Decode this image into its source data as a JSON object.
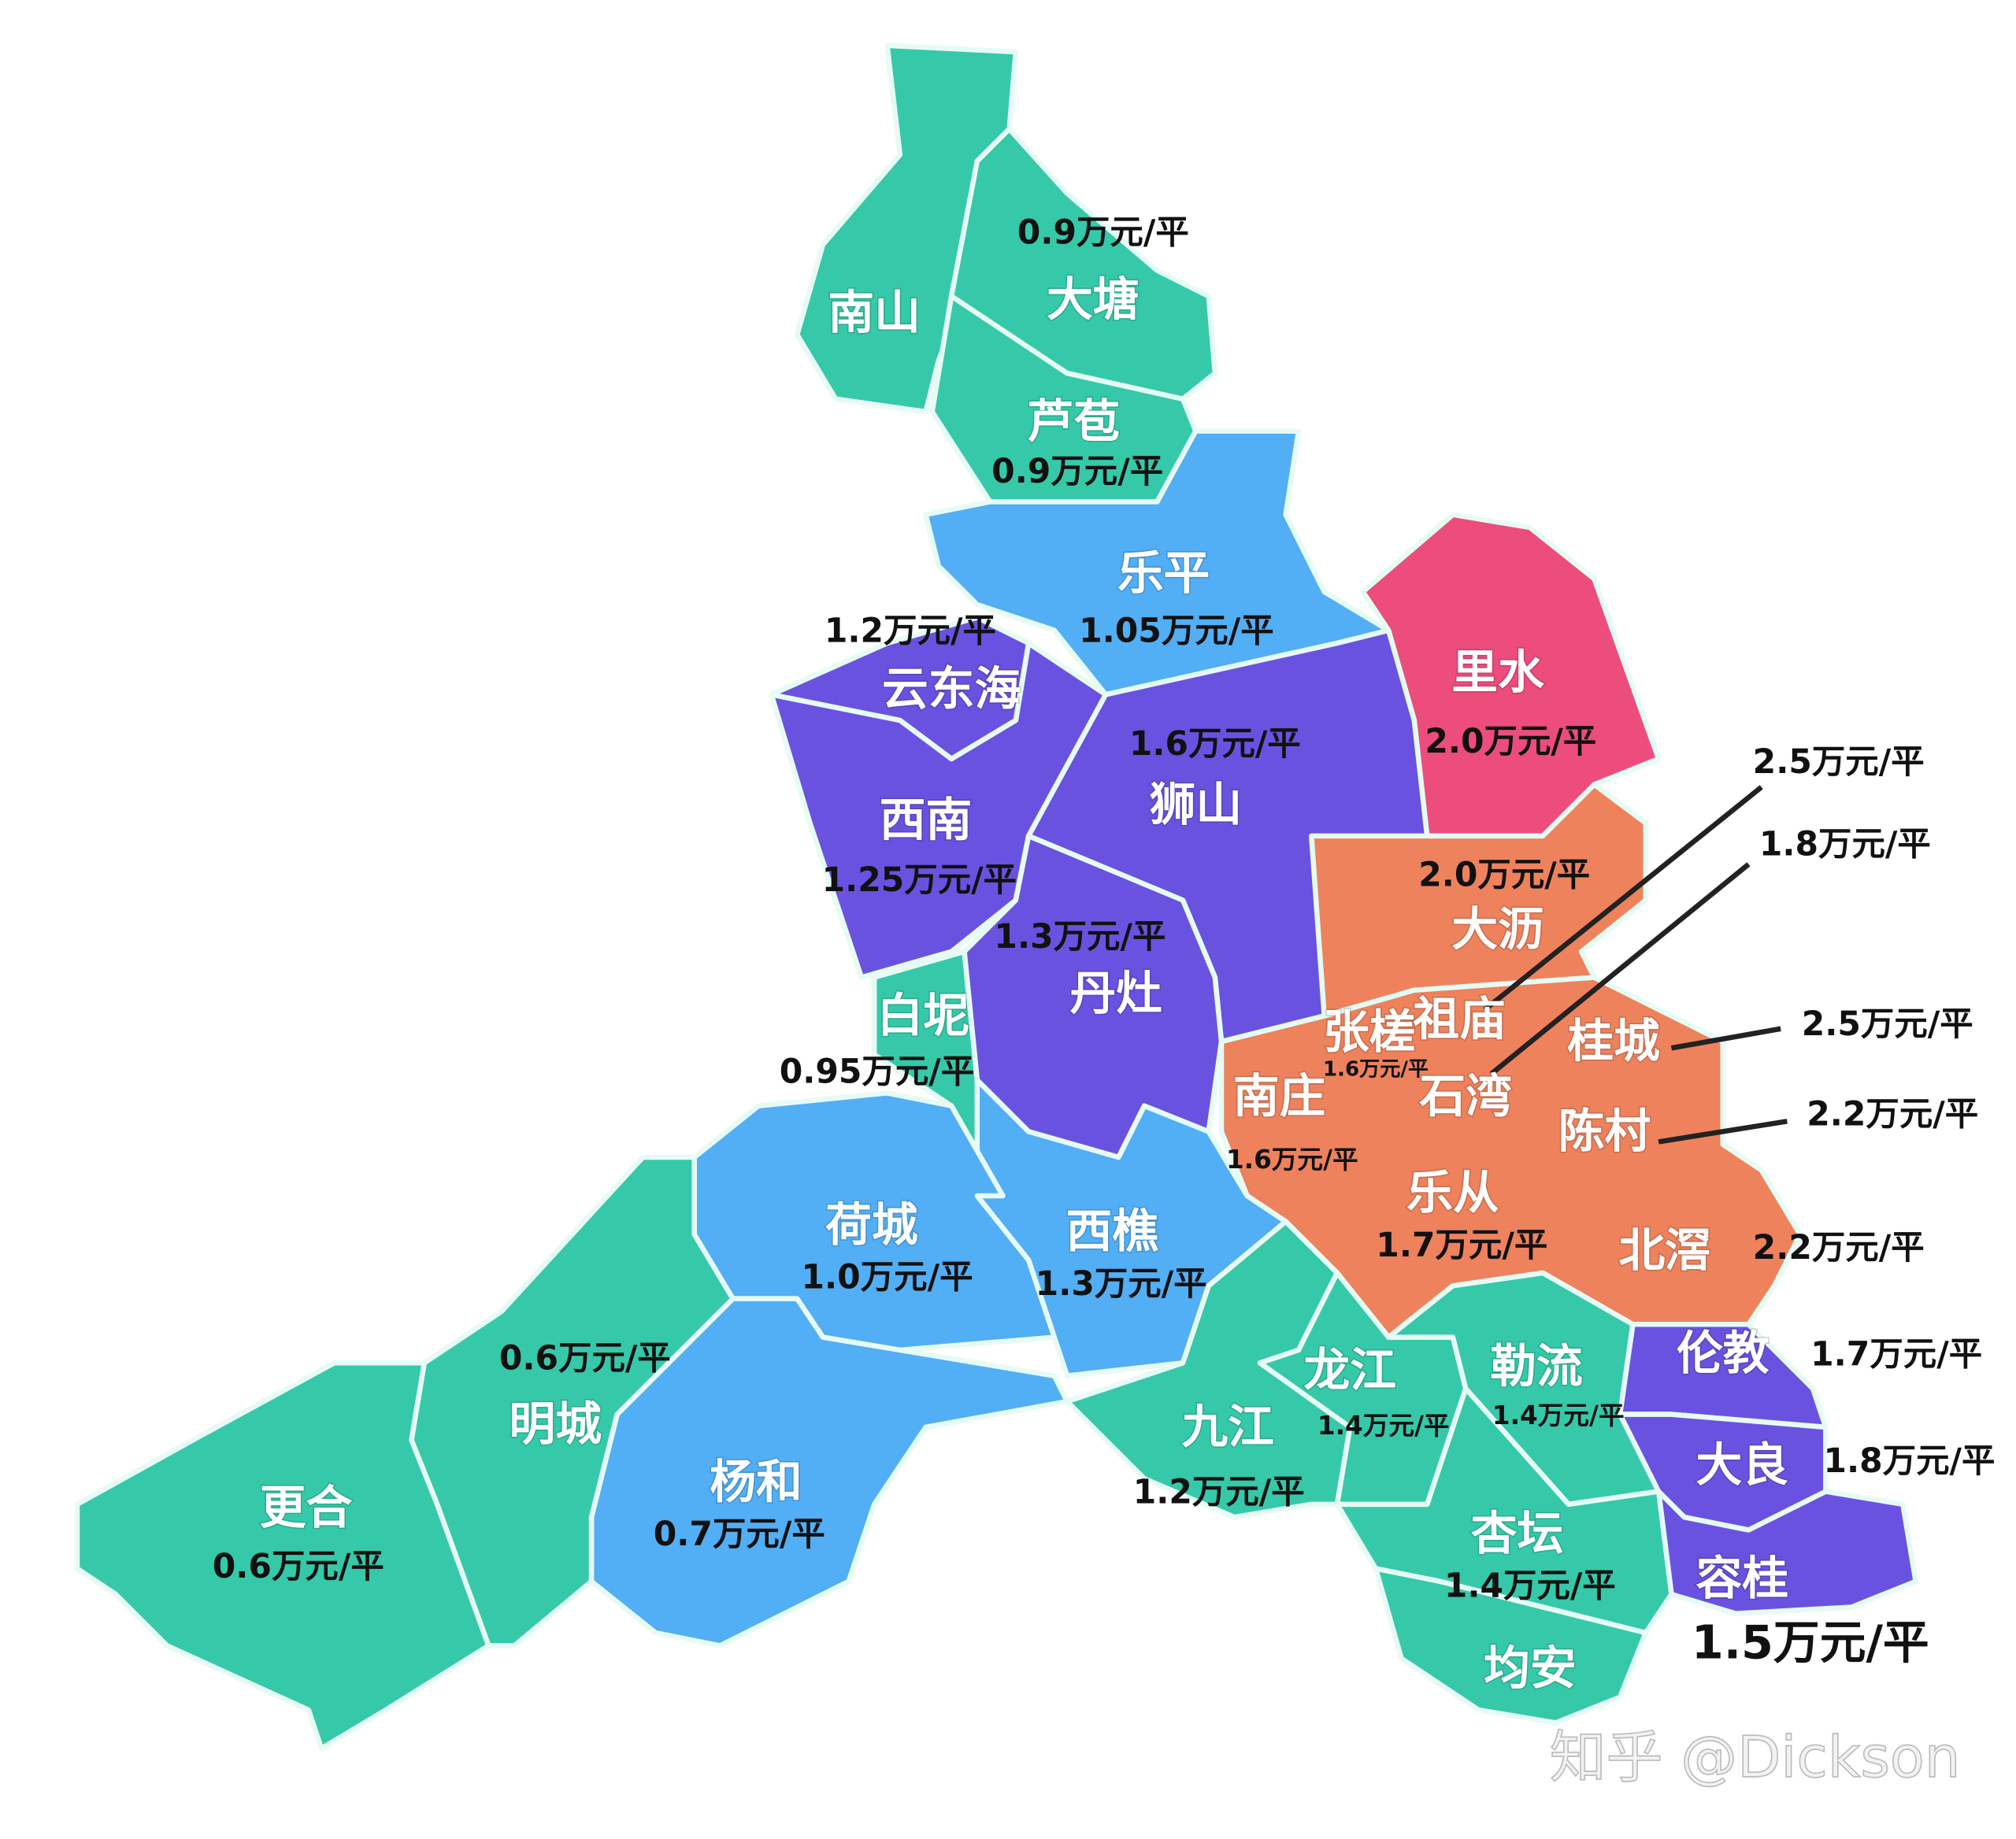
{
  "regions": [
    {
      "name": "南山"
    },
    {
      "name": "大塘",
      "price": "0.9万元/平"
    },
    {
      "name": "芦苞",
      "price": "0.9万元/平"
    },
    {
      "name": "乐平",
      "price": "1.05万元/平"
    },
    {
      "name": "云东海",
      "price": "1.2万元/平"
    },
    {
      "name": "里水",
      "price": "2.0万元/平"
    },
    {
      "name": "狮山",
      "price": "1.6万元/平"
    },
    {
      "name": "西南",
      "price": "1.25万元/平"
    },
    {
      "name": "大沥",
      "price": "2.0万元/平"
    },
    {
      "name": "丹灶",
      "price": "1.3万元/平"
    },
    {
      "name": "白坭",
      "price": "0.95万元/平"
    },
    {
      "name": "张槎",
      "price": "1.6万元/平"
    },
    {
      "name": "祖庙",
      "price": "2.5万元/平"
    },
    {
      "name": "石湾",
      "price": "1.8万元/平"
    },
    {
      "name": "桂城",
      "price": "2.5万元/平"
    },
    {
      "name": "南庄",
      "price": "1.6万元/平"
    },
    {
      "name": "陈村",
      "price": "2.2万元/平"
    },
    {
      "name": "荷城",
      "price": "1.0万元/平"
    },
    {
      "name": "西樵",
      "price": "1.3万元/平"
    },
    {
      "name": "乐从",
      "price": "1.7万元/平"
    },
    {
      "name": "北滘",
      "price": "2.2万元/平"
    },
    {
      "name": "明城",
      "price": "0.6万元/平"
    },
    {
      "name": "龙江",
      "price": "1.4万元/平"
    },
    {
      "name": "勒流",
      "price": "1.4万元/平"
    },
    {
      "name": "伦教",
      "price": "1.7万元/平"
    },
    {
      "name": "九江",
      "price": "1.2万元/平"
    },
    {
      "name": "杨和",
      "price": "0.7万元/平"
    },
    {
      "name": "大良",
      "price": "1.8万元/平"
    },
    {
      "name": "更合",
      "price": "0.6万元/平"
    },
    {
      "name": "杏坛",
      "price": "1.4万元/平"
    },
    {
      "name": "容桂",
      "price": "1.5万元/平"
    },
    {
      "name": "均安"
    }
  ],
  "watermark": "知乎 @Dickson"
}
